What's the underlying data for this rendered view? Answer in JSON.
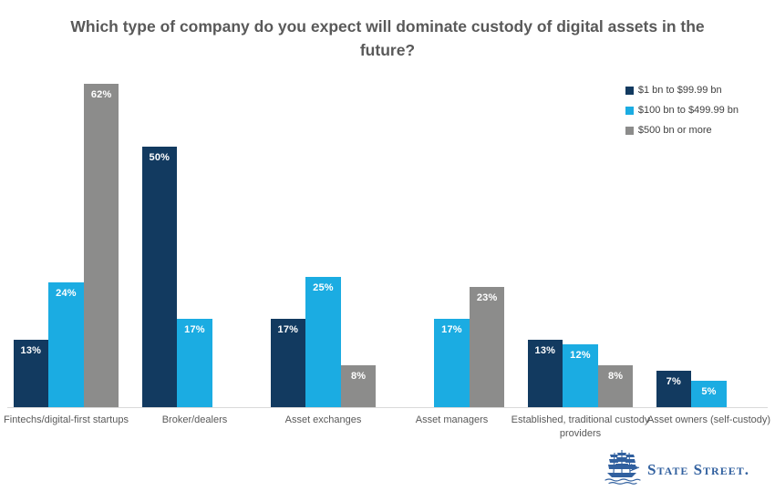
{
  "title": "Which type of company do you expect will dominate custody of digital assets in the future?",
  "colors": {
    "navy": "#123a60",
    "light_blue": "#1bace2",
    "gray": "#8c8c8b",
    "title_text": "#595959",
    "axis_line": "#d9d9d9",
    "logo_blue": "#31609f"
  },
  "legend": {
    "position": "top-right",
    "items": [
      {
        "label": "$1 bn to $99.99 bn",
        "color": "#123a60"
      },
      {
        "label": "$100 bn to $499.99 bn",
        "color": "#1bace2"
      },
      {
        "label": "$500 bn or more",
        "color": "#8c8c8b"
      }
    ]
  },
  "chart_data": {
    "type": "bar",
    "title": "Which type of company do you expect will dominate custody of digital assets in the future?",
    "categories": [
      "Fintechs/digital-first startups",
      "Broker/dealers",
      "Asset exchanges",
      "Asset managers",
      "Established, traditional custody providers",
      "Asset owners (self-custody)"
    ],
    "series": [
      {
        "name": "$1 bn to $99.99 bn",
        "color": "#123a60",
        "values": [
          13,
          50,
          17,
          null,
          13,
          7
        ]
      },
      {
        "name": "$100 bn to $499.99 bn",
        "color": "#1bace2",
        "values": [
          24,
          17,
          25,
          17,
          12,
          5
        ]
      },
      {
        "name": "$500 bn or more",
        "color": "#8c8c8b",
        "values": [
          62,
          null,
          8,
          23,
          8,
          null
        ]
      }
    ],
    "value_suffix": "%",
    "data_labels": "inside-top, white",
    "xlabel": "",
    "ylabel": "",
    "ylim": [
      0,
      63.2
    ],
    "grid": false,
    "legend_position": "top-right"
  },
  "logo": {
    "text": "State Street."
  }
}
